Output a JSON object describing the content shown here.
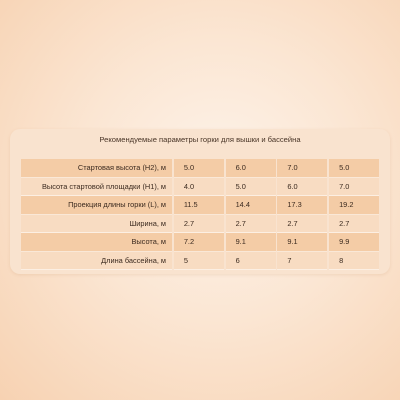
{
  "table": {
    "caption": "Рекомендуемые параметры горки для вышки и бассейна",
    "rows": [
      {
        "label": "Стартовая высота (H2), м",
        "values": [
          "5.0",
          "6.0",
          "7.0",
          "5.0"
        ]
      },
      {
        "label": "Высота стартовой площадки (H1), м",
        "values": [
          "4.0",
          "5.0",
          "6.0",
          "7.0"
        ]
      },
      {
        "label": "Проекция длины горки (L), м",
        "values": [
          "11.5",
          "14.4",
          "17.3",
          "19.2"
        ]
      },
      {
        "label": "Ширина, м",
        "values": [
          "2.7",
          "2.7",
          "2.7",
          "2.7"
        ]
      },
      {
        "label": "Высота, м",
        "values": [
          "7.2",
          "9.1",
          "9.1",
          "9.9"
        ]
      },
      {
        "label": "Длина бассейна, м",
        "values": [
          "5",
          "6",
          "7",
          "8"
        ]
      }
    ]
  },
  "colors": {
    "row_dark": "#f4cca6",
    "row_light": "#f8dcc2",
    "card": "#f9e3cf",
    "text": "#3b2a1f"
  }
}
